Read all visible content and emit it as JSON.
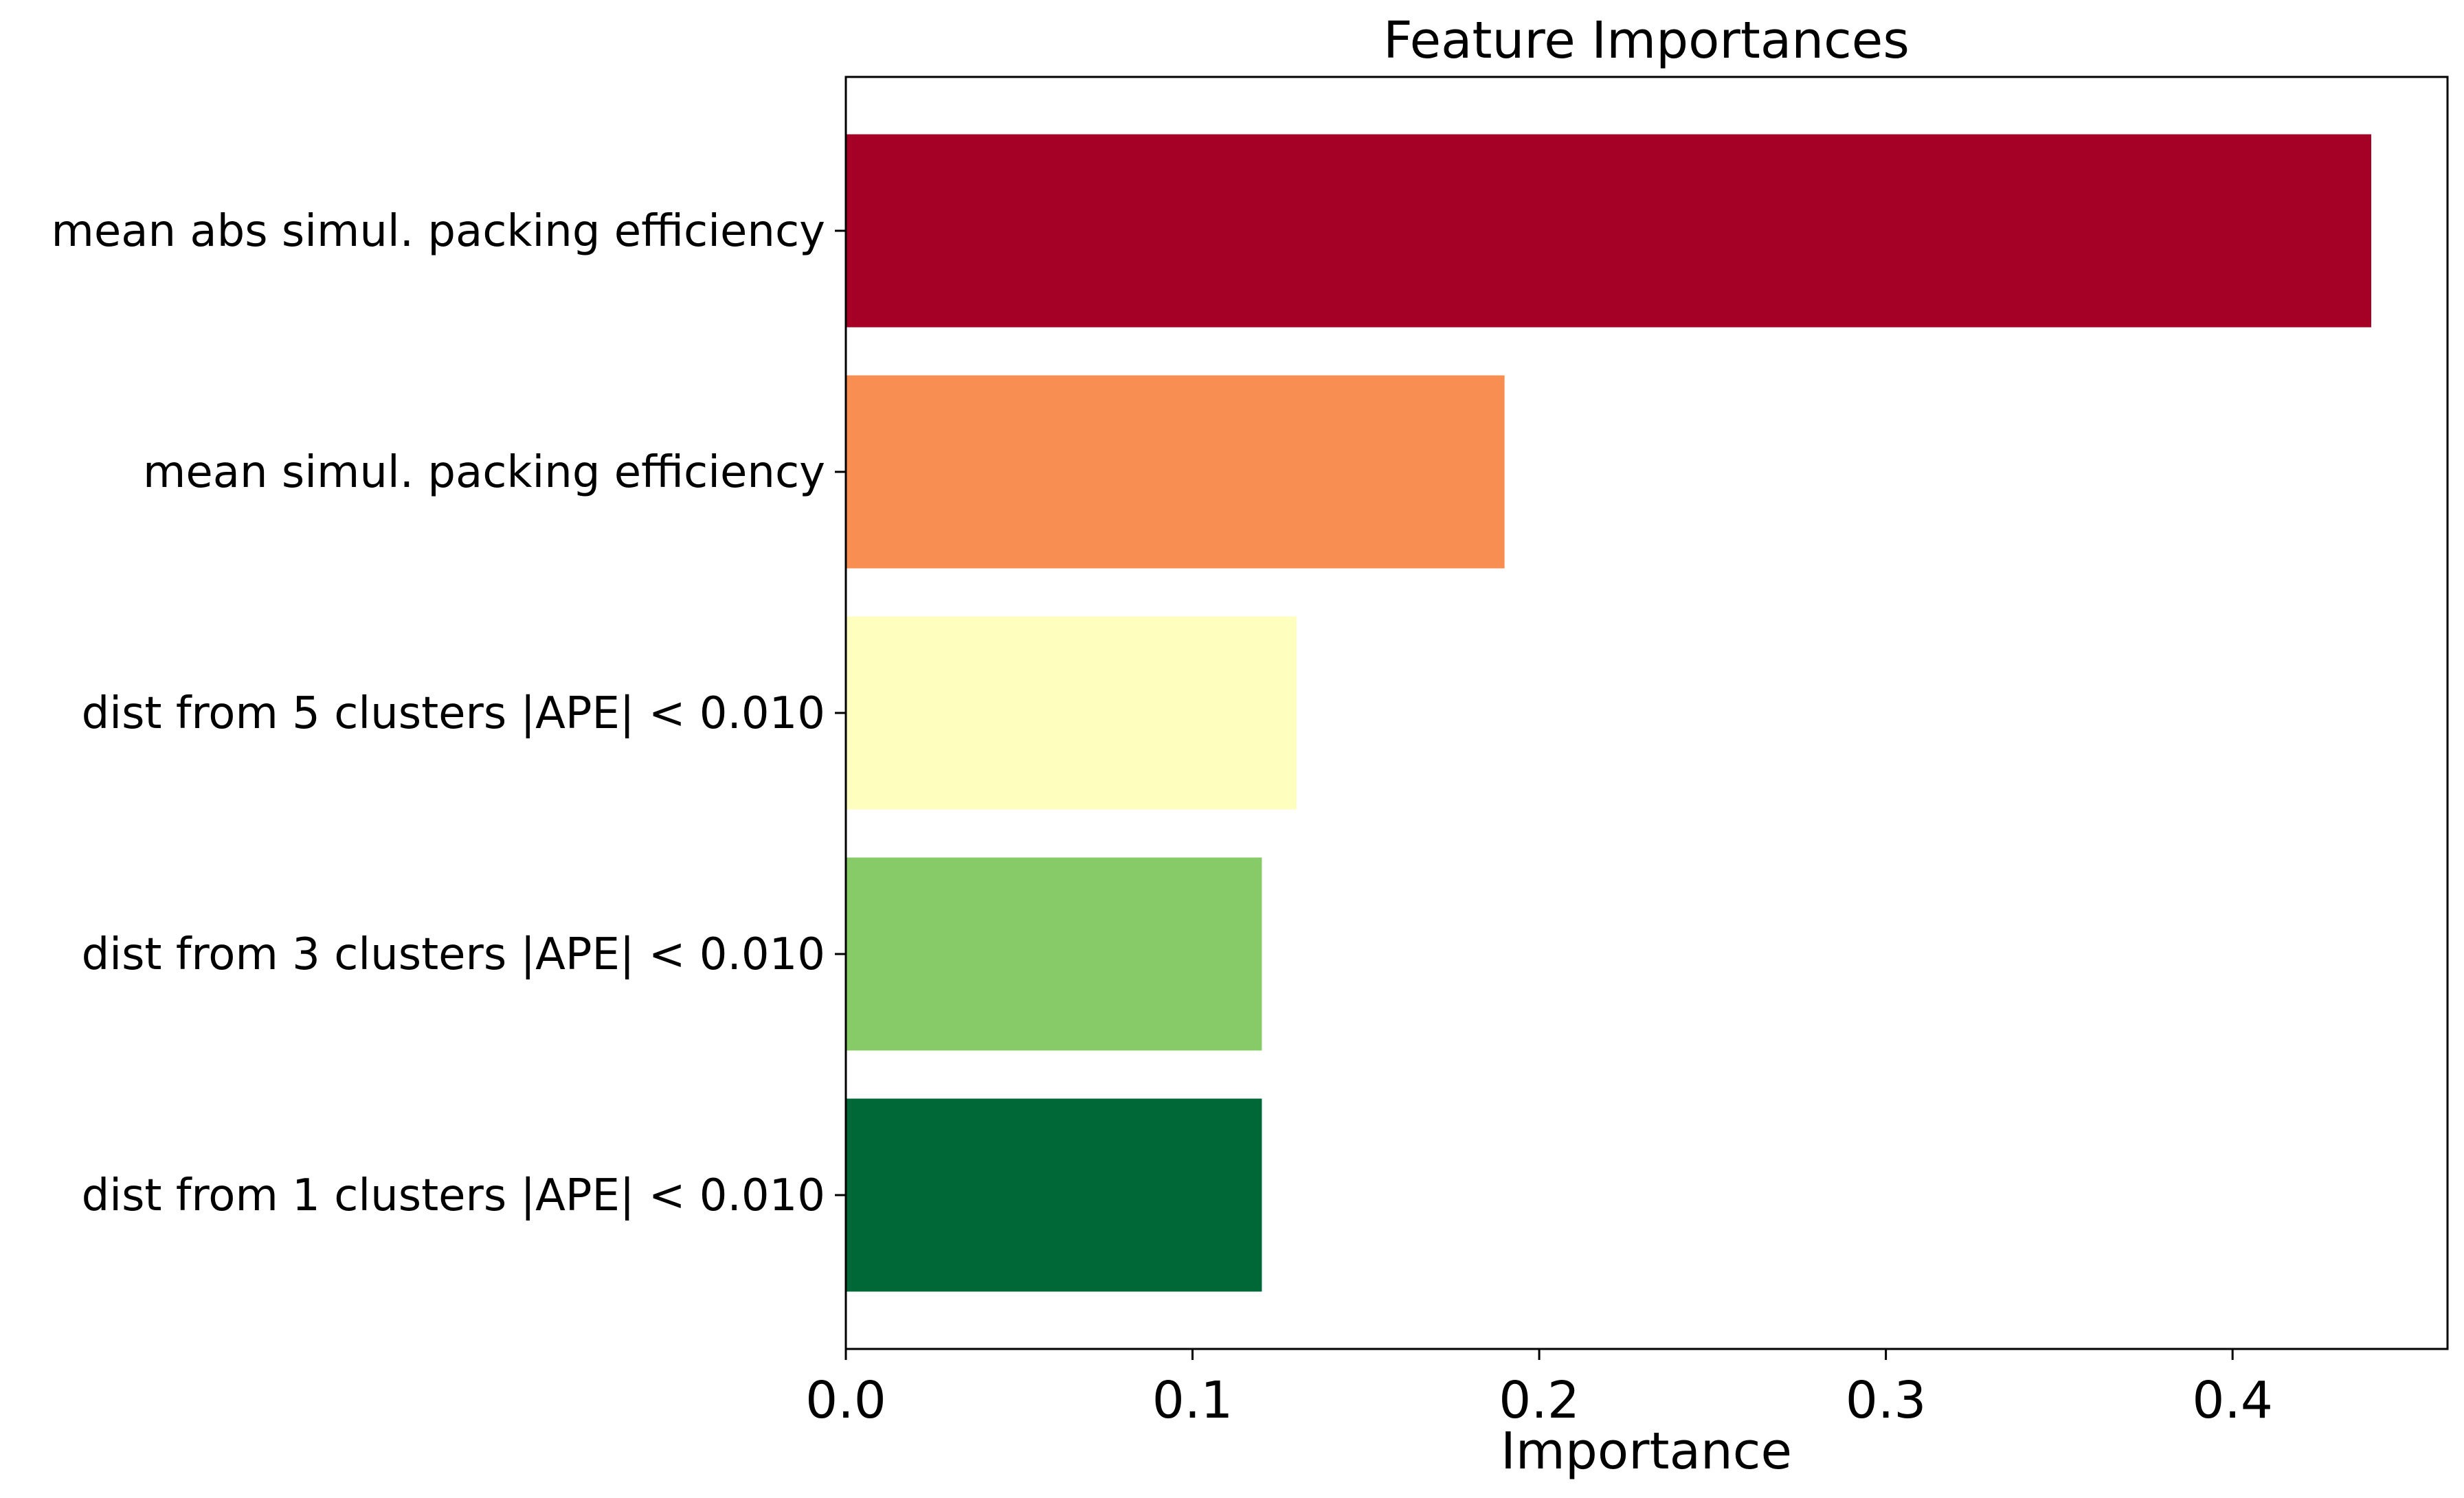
{
  "chart_data": {
    "type": "bar",
    "orientation": "horizontal",
    "title": "Feature Importances",
    "xlabel": "Importance",
    "ylabel": "",
    "categories": [
      "mean abs simul. packing efficiency",
      "mean simul. packing efficiency",
      "dist from 5 clusters |APE| < 0.010",
      "dist from 3 clusters |APE| < 0.010",
      "dist from 1 clusters |APE| < 0.010"
    ],
    "values": [
      0.44,
      0.19,
      0.13,
      0.12,
      0.12
    ],
    "bar_colors": [
      "#a50026",
      "#f98e52",
      "#feffbe",
      "#86cb67",
      "#006837"
    ],
    "xlim": [
      0,
      0.462
    ],
    "xticks": [
      "0.0",
      "0.1",
      "0.2",
      "0.3",
      "0.4"
    ],
    "xtick_values": [
      0,
      0.1,
      0.2,
      0.3,
      0.4
    ],
    "grid": false,
    "legend": "none"
  }
}
